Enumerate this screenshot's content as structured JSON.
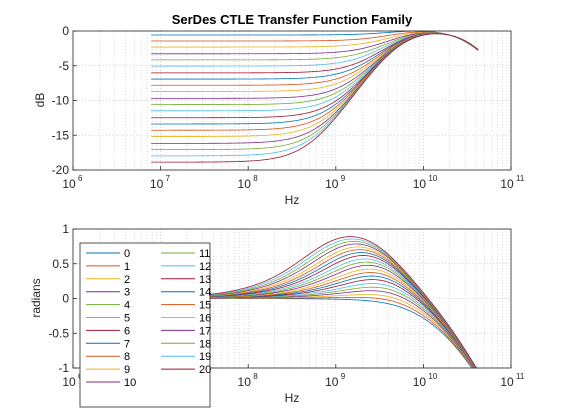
{
  "chart_data": [
    {
      "type": "line",
      "title": "SerDes CTLE Transfer Function Family",
      "xlabel": "Hz",
      "ylabel": "dB",
      "xscale": "log",
      "xlim": [
        1000000.0,
        100000000000.0
      ],
      "ylim": [
        -20,
        0
      ],
      "grid": true,
      "x_tick_labels": [
        {
          "base": "10",
          "exp": "6"
        },
        {
          "base": "10",
          "exp": "7"
        },
        {
          "base": "10",
          "exp": "8"
        },
        {
          "base": "10",
          "exp": "9"
        },
        {
          "base": "10",
          "exp": "10"
        },
        {
          "base": "10",
          "exp": "11"
        }
      ],
      "y_ticks": [
        0,
        -5,
        -10,
        -15,
        -20
      ],
      "y_tick_labels": [
        "0",
        "-5",
        "-10",
        "-15",
        "-20"
      ],
      "x_data_range": [
        7800000.0,
        42000000000.0
      ],
      "series_count": 21,
      "dc_gain_db": [
        -1,
        -1.9,
        -2.8,
        -3.8,
        -4.7,
        -5.6,
        -6.6,
        -7.5,
        -8.4,
        -9.3,
        -10.3,
        -11.2,
        -12.1,
        -13.1,
        -14.0,
        -14.9,
        -15.8,
        -16.8,
        -17.7,
        -18.6,
        -19.5
      ],
      "peak_gain_db": -0.6
    },
    {
      "type": "line",
      "title": "",
      "xlabel": "Hz",
      "ylabel": "radians",
      "xscale": "log",
      "xlim": [
        1000000.0,
        100000000000.0
      ],
      "ylim": [
        -1,
        1
      ],
      "grid": true,
      "x_tick_labels": [
        {
          "base": "10",
          "exp": "6"
        },
        {
          "base": "10",
          "exp": "7"
        },
        {
          "base": "10",
          "exp": "8"
        },
        {
          "base": "10",
          "exp": "9"
        },
        {
          "base": "10",
          "exp": "10"
        },
        {
          "base": "10",
          "exp": "11"
        }
      ],
      "y_ticks": [
        1,
        0.5,
        0,
        -0.5,
        -1
      ],
      "y_tick_labels": [
        "1",
        "0.5",
        "0",
        "-0.5",
        "-1"
      ],
      "x_data_range": [
        7800000.0,
        42000000000.0
      ],
      "phase_end_rad": -0.85,
      "legend_placement": "bottom-left",
      "legend": [
        "0",
        "1",
        "2",
        "3",
        "4",
        "5",
        "6",
        "7",
        "8",
        "9",
        "10",
        "11",
        "12",
        "13",
        "14",
        "15",
        "16",
        "17",
        "18",
        "19",
        "20"
      ],
      "colors": [
        "#0072BD",
        "#D95319",
        "#EDB120",
        "#7E2F8E",
        "#77AC30",
        "#4DBEEE",
        "#A2142F"
      ]
    }
  ]
}
